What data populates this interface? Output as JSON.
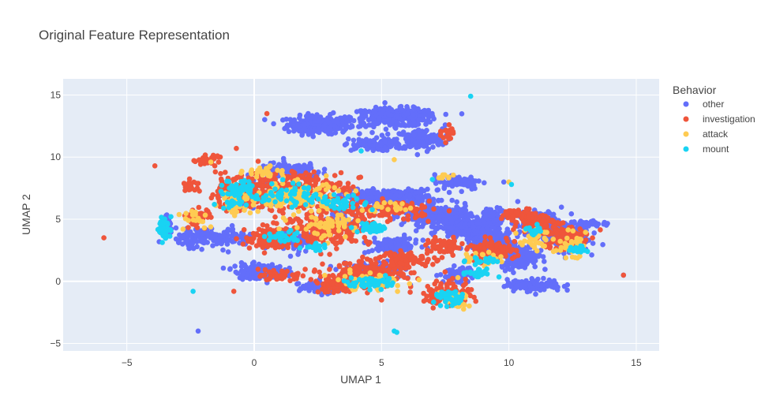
{
  "chart_data": {
    "type": "scatter",
    "title": "Original Feature Representation",
    "xlabel": "UMAP 1",
    "ylabel": "UMAP 2",
    "xlim": [
      -7.5,
      15.9
    ],
    "ylim": [
      -5.6,
      16.3
    ],
    "xticks": [
      -5,
      0,
      5,
      10,
      15
    ],
    "yticks": [
      -5,
      0,
      5,
      10,
      15
    ],
    "grid": true,
    "legend": {
      "title": "Behavior",
      "placement": "right"
    },
    "background_color": "#e5ecf6",
    "series": [
      {
        "name": "other",
        "color": "#636efa",
        "clusters": [
          [
            2.5,
            12.6,
            1.0,
            0.6,
            260
          ],
          [
            5.5,
            13.2,
            1.4,
            0.6,
            300
          ],
          [
            6.5,
            11.4,
            0.8,
            0.7,
            160
          ],
          [
            4.5,
            11.0,
            0.8,
            0.4,
            90
          ],
          [
            5.3,
            6.8,
            1.5,
            0.5,
            260
          ],
          [
            7.2,
            5.3,
            1.1,
            0.7,
            260
          ],
          [
            8.4,
            4.3,
            0.9,
            0.6,
            200
          ],
          [
            9.3,
            3.2,
            0.6,
            0.6,
            170
          ],
          [
            8.0,
            8.0,
            0.8,
            0.5,
            80
          ],
          [
            10.4,
            2.0,
            0.6,
            0.8,
            190
          ],
          [
            11.3,
            4.5,
            0.8,
            0.9,
            200
          ],
          [
            12.3,
            3.5,
            0.7,
            0.9,
            170
          ],
          [
            11.0,
            -0.3,
            0.9,
            0.4,
            110
          ],
          [
            0.2,
            0.8,
            0.8,
            0.5,
            180
          ],
          [
            -1.5,
            3.5,
            1.3,
            0.6,
            170
          ],
          [
            -3.4,
            4.4,
            0.15,
            0.6,
            50
          ],
          [
            1.4,
            8.9,
            1.0,
            0.5,
            150
          ],
          [
            -0.3,
            7.0,
            0.6,
            0.8,
            90
          ],
          [
            5.5,
            2.9,
            0.8,
            0.5,
            120
          ],
          [
            4.6,
            0.8,
            1.0,
            0.6,
            110
          ],
          [
            1.6,
            3.2,
            0.7,
            0.7,
            90
          ],
          [
            2.5,
            -0.5,
            0.6,
            0.4,
            70
          ],
          [
            8.0,
            0.5,
            0.5,
            0.5,
            70
          ],
          [
            13.1,
            4.6,
            0.5,
            0.2,
            50
          ],
          [
            9.4,
            5.3,
            0.4,
            0.5,
            50
          ],
          [
            3.4,
            4.8,
            0.6,
            0.6,
            70
          ]
        ],
        "points": [
          [
            -2.2,
            -4.0
          ],
          [
            14.5,
            0.5
          ],
          [
            -0.5,
            1.5
          ],
          [
            3.0,
            1.2
          ],
          [
            9.8,
            8.0
          ]
        ]
      },
      {
        "name": "investigation",
        "color": "#ef553b",
        "clusters": [
          [
            1.5,
            7.3,
            1.8,
            1.3,
            360
          ],
          [
            -0.9,
            7.1,
            0.7,
            1.0,
            110
          ],
          [
            -2.2,
            5.2,
            0.4,
            0.6,
            50
          ],
          [
            2.9,
            4.2,
            1.4,
            1.0,
            200
          ],
          [
            0.6,
            3.4,
            0.8,
            0.8,
            110
          ],
          [
            5.2,
            5.7,
            1.5,
            0.6,
            130
          ],
          [
            4.5,
            0.6,
            1.4,
            0.8,
            200
          ],
          [
            3.3,
            -0.3,
            0.8,
            0.5,
            90
          ],
          [
            6.0,
            1.8,
            0.9,
            0.5,
            80
          ],
          [
            7.6,
            -1.0,
            0.8,
            0.8,
            120
          ],
          [
            7.5,
            2.8,
            0.6,
            0.5,
            60
          ],
          [
            9.3,
            2.5,
            0.8,
            0.7,
            110
          ],
          [
            11.1,
            4.7,
            0.6,
            0.7,
            110
          ],
          [
            12.2,
            3.5,
            0.7,
            0.9,
            130
          ],
          [
            10.4,
            5.4,
            0.5,
            0.4,
            50
          ],
          [
            1.0,
            0.4,
            0.6,
            0.3,
            50
          ],
          [
            -1.9,
            9.8,
            0.4,
            0.3,
            35
          ],
          [
            -2.5,
            7.7,
            0.3,
            0.4,
            25
          ],
          [
            7.6,
            11.9,
            0.2,
            0.5,
            25
          ]
        ],
        "points": [
          [
            -5.9,
            3.5
          ],
          [
            -3.9,
            9.3
          ],
          [
            0.5,
            13.5
          ],
          [
            14.5,
            0.5
          ],
          [
            -0.7,
            10.7
          ],
          [
            -0.8,
            -0.8
          ],
          [
            8.7,
            -1.6
          ],
          [
            5.0,
            -1.5
          ]
        ]
      },
      {
        "name": "attack",
        "color": "#fecb52",
        "clusters": [
          [
            1.5,
            6.7,
            1.5,
            1.1,
            130
          ],
          [
            -0.7,
            6.5,
            0.5,
            0.9,
            45
          ],
          [
            -2.4,
            5.2,
            0.5,
            0.6,
            20
          ],
          [
            3.0,
            4.4,
            1.2,
            0.8,
            60
          ],
          [
            4.5,
            0.0,
            1.2,
            0.6,
            55
          ],
          [
            7.9,
            -1.6,
            0.5,
            0.5,
            35
          ],
          [
            9.0,
            1.8,
            0.6,
            0.5,
            25
          ],
          [
            11.0,
            3.4,
            0.5,
            0.7,
            30
          ],
          [
            12.4,
            2.9,
            0.5,
            0.8,
            35
          ],
          [
            0.3,
            8.8,
            0.6,
            0.4,
            25
          ],
          [
            5.2,
            6.0,
            0.8,
            0.4,
            20
          ],
          [
            7.5,
            8.4,
            0.3,
            0.3,
            10
          ]
        ],
        "points": [
          [
            -1.7,
            9.6
          ],
          [
            10.0,
            8.0
          ],
          [
            5.5,
            9.8
          ],
          [
            8.0,
            0.3
          ]
        ]
      },
      {
        "name": "mount",
        "color": "#19d3f3",
        "clusters": [
          [
            -3.5,
            4.2,
            0.2,
            0.7,
            60
          ],
          [
            -0.6,
            7.5,
            0.5,
            0.6,
            50
          ],
          [
            1.2,
            7.0,
            1.1,
            0.8,
            60
          ],
          [
            3.5,
            6.3,
            0.8,
            0.5,
            40
          ],
          [
            4.7,
            4.3,
            0.5,
            0.3,
            45
          ],
          [
            1.0,
            3.6,
            0.6,
            0.4,
            30
          ],
          [
            4.7,
            -0.1,
            0.9,
            0.4,
            50
          ],
          [
            7.7,
            -1.4,
            0.5,
            0.5,
            40
          ],
          [
            8.7,
            0.6,
            0.5,
            0.3,
            25
          ],
          [
            9.0,
            1.7,
            0.6,
            0.3,
            20
          ],
          [
            11.0,
            4.0,
            0.3,
            0.4,
            15
          ],
          [
            12.7,
            2.6,
            0.3,
            0.3,
            15
          ],
          [
            2.5,
            2.7,
            0.5,
            0.3,
            15
          ],
          [
            -1.0,
            6.2,
            0.4,
            0.3,
            20
          ]
        ],
        "points": [
          [
            -2.4,
            -0.8
          ],
          [
            5.5,
            -4.0
          ],
          [
            5.6,
            -4.1
          ],
          [
            8.5,
            14.9
          ],
          [
            4.2,
            10.5
          ],
          [
            10.1,
            7.8
          ],
          [
            7.0,
            8.2
          ]
        ]
      }
    ]
  }
}
